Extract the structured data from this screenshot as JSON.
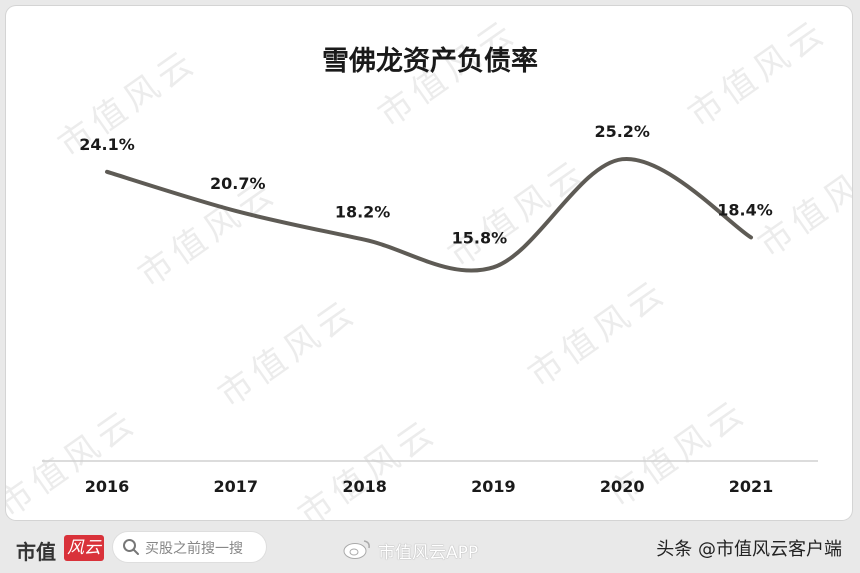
{
  "watermark_text": "市值风云",
  "chart_data": {
    "type": "line",
    "title": "雪佛龙资产负债率",
    "categories": [
      "2016",
      "2017",
      "2018",
      "2019",
      "2020",
      "2021"
    ],
    "values": [
      24.1,
      20.7,
      18.2,
      15.8,
      25.2,
      18.4
    ],
    "value_labels": [
      "24.1%",
      "20.7%",
      "18.2%",
      "15.8%",
      "25.2%",
      "18.4%"
    ],
    "xlabel": "",
    "ylabel": "",
    "ylim": [
      0,
      30
    ],
    "smooth": true,
    "line_color": "#5e5b55",
    "grid": false,
    "legend": "none"
  },
  "footer": {
    "brand": "市值",
    "brand_tag": "风云",
    "search_placeholder": "买股之前搜一搜",
    "weibo_text": "市值风云APP",
    "headline": "头条 @市值风云客户端"
  }
}
